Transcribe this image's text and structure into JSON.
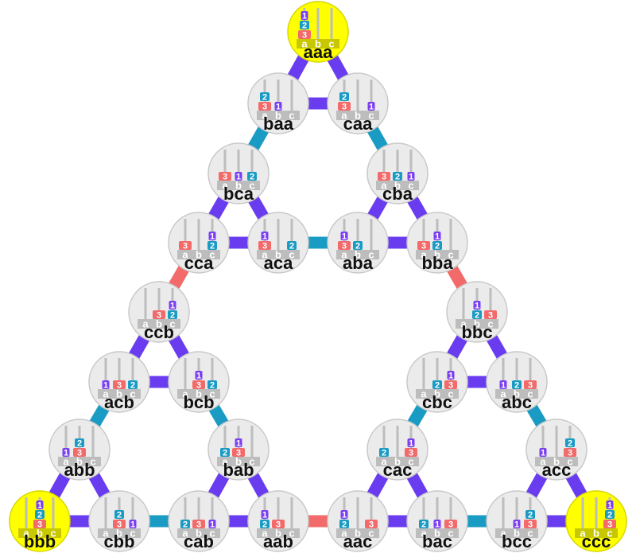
{
  "peg_labels": [
    "a",
    "b",
    "c"
  ],
  "disk_labels": [
    "1",
    "2",
    "3"
  ],
  "colors": {
    "disk_1": "#7b3ff2",
    "disk_2": "#1a9bc4",
    "disk_3": "#f26a6a",
    "node_fill": "#ebebeb",
    "node_stroke": "#c8c8c8",
    "highlight_fill": "#ffff00",
    "peg_base": "#bdbdbd",
    "peg_base_highlight": "#c8c800",
    "rod": "#bdbdbd",
    "edge_disk_1": "#6a3cf0",
    "edge_disk_2": "#1a9bc4",
    "edge_disk_3": "#f26a6a"
  },
  "states": [
    {
      "label": "aaa",
      "highlight": true
    },
    {
      "label": "baa",
      "highlight": false
    },
    {
      "label": "caa",
      "highlight": false
    },
    {
      "label": "bca",
      "highlight": false
    },
    {
      "label": "cba",
      "highlight": false
    },
    {
      "label": "cca",
      "highlight": false
    },
    {
      "label": "aca",
      "highlight": false
    },
    {
      "label": "aba",
      "highlight": false
    },
    {
      "label": "bba",
      "highlight": false
    },
    {
      "label": "ccb",
      "highlight": false
    },
    {
      "label": "bbc",
      "highlight": false
    },
    {
      "label": "acb",
      "highlight": false
    },
    {
      "label": "bcb",
      "highlight": false
    },
    {
      "label": "cbc",
      "highlight": false
    },
    {
      "label": "abc",
      "highlight": false
    },
    {
      "label": "abb",
      "highlight": false
    },
    {
      "label": "bab",
      "highlight": false
    },
    {
      "label": "cac",
      "highlight": false
    },
    {
      "label": "acc",
      "highlight": false
    },
    {
      "label": "bbb",
      "highlight": true
    },
    {
      "label": "cbb",
      "highlight": false
    },
    {
      "label": "cab",
      "highlight": false
    },
    {
      "label": "aab",
      "highlight": false
    },
    {
      "label": "aac",
      "highlight": false
    },
    {
      "label": "bac",
      "highlight": false
    },
    {
      "label": "bcc",
      "highlight": false
    },
    {
      "label": "ccc",
      "highlight": true
    }
  ],
  "edges": [
    [
      "aaa",
      "baa",
      1
    ],
    [
      "aaa",
      "caa",
      1
    ],
    [
      "baa",
      "caa",
      1
    ],
    [
      "baa",
      "bca",
      2
    ],
    [
      "caa",
      "cba",
      2
    ],
    [
      "bca",
      "cca",
      1
    ],
    [
      "bca",
      "aca",
      1
    ],
    [
      "cca",
      "aca",
      1
    ],
    [
      "cba",
      "aba",
      1
    ],
    [
      "cba",
      "bba",
      1
    ],
    [
      "aba",
      "bba",
      1
    ],
    [
      "aca",
      "aba",
      2
    ],
    [
      "cca",
      "ccb",
      3
    ],
    [
      "bba",
      "bbc",
      3
    ],
    [
      "ccb",
      "acb",
      1
    ],
    [
      "ccb",
      "bcb",
      1
    ],
    [
      "acb",
      "bcb",
      1
    ],
    [
      "bbc",
      "cbc",
      1
    ],
    [
      "bbc",
      "abc",
      1
    ],
    [
      "cbc",
      "abc",
      1
    ],
    [
      "acb",
      "abb",
      2
    ],
    [
      "bcb",
      "bab",
      2
    ],
    [
      "cbc",
      "cac",
      2
    ],
    [
      "abc",
      "acc",
      2
    ],
    [
      "abb",
      "bbb",
      1
    ],
    [
      "abb",
      "cbb",
      1
    ],
    [
      "bbb",
      "cbb",
      1
    ],
    [
      "bab",
      "cab",
      1
    ],
    [
      "bab",
      "aab",
      1
    ],
    [
      "cab",
      "aab",
      1
    ],
    [
      "cac",
      "aac",
      1
    ],
    [
      "cac",
      "bac",
      1
    ],
    [
      "aac",
      "bac",
      1
    ],
    [
      "acc",
      "bcc",
      1
    ],
    [
      "acc",
      "ccc",
      1
    ],
    [
      "bcc",
      "ccc",
      1
    ],
    [
      "cbb",
      "cab",
      2
    ],
    [
      "aab",
      "aac",
      3
    ],
    [
      "bac",
      "bcc",
      2
    ]
  ]
}
